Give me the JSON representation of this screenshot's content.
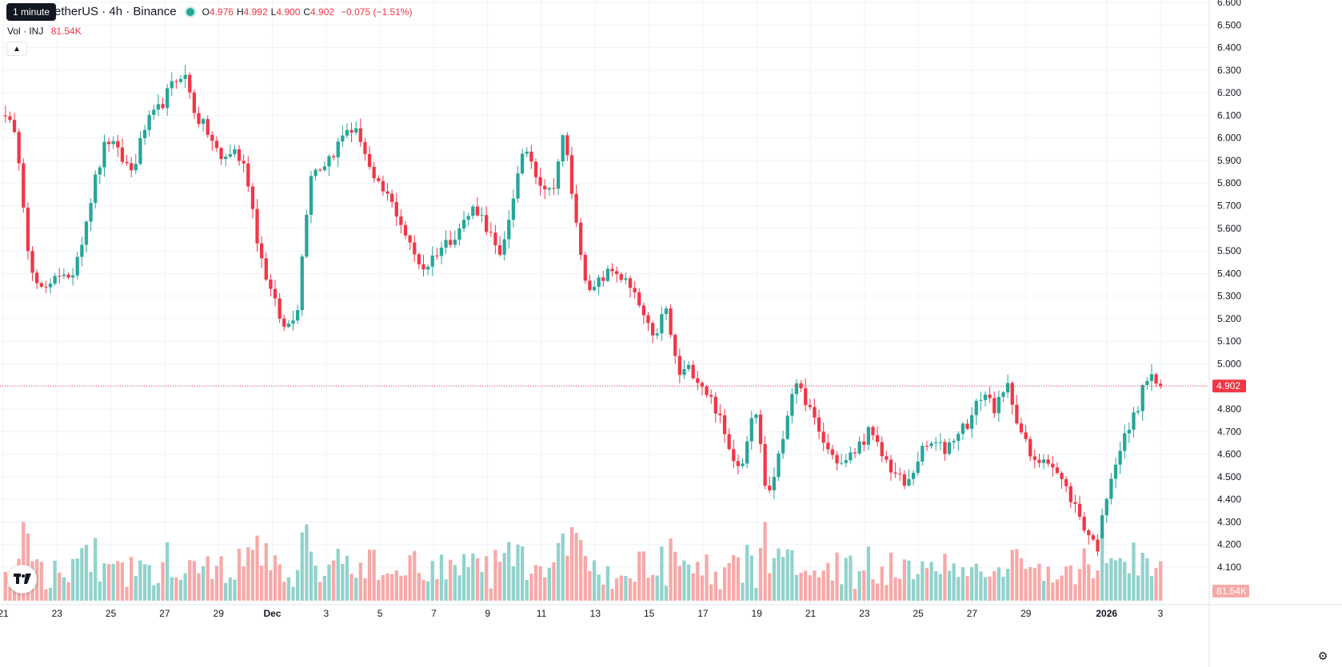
{
  "header": {
    "symbol": "etherUS · 4h · Binance",
    "tooltip": "1 minute",
    "ohlc": {
      "o_label": "O",
      "o_value": "4.976",
      "h_label": "H",
      "h_value": "4.992",
      "l_label": "L",
      "l_value": "4.900",
      "c_label": "C",
      "c_value": "4.902",
      "change": "−0.075 (−1.51%)"
    },
    "volume": {
      "name": "Vol · INJ",
      "value": "81.54K"
    }
  },
  "colors": {
    "up": "#26a69a",
    "down": "#f23645",
    "up_volume": "#92d2cc",
    "down_volume": "#f7a9a7",
    "grid": "#f0f3fa",
    "price_line": "#f23645"
  },
  "icons": {
    "logo": "tradingview-logo-icon",
    "settings": "gear-icon",
    "collapse": "chevron-up-icon"
  },
  "chart_data": {
    "type": "candlestick",
    "timeframe": "4h",
    "ylim": [
      4.0,
      6.6
    ],
    "y_ticks": [
      "6.600",
      "6.500",
      "6.400",
      "6.300",
      "6.200",
      "6.100",
      "6.000",
      "5.900",
      "5.800",
      "5.700",
      "5.600",
      "5.500",
      "5.400",
      "5.300",
      "5.200",
      "5.100",
      "5.000",
      "4.900",
      "4.800",
      "4.700",
      "4.600",
      "4.500",
      "4.400",
      "4.300",
      "4.200",
      "4.100"
    ],
    "x_ticks": [
      {
        "label": "21",
        "day": 0
      },
      {
        "label": "23",
        "day": 2
      },
      {
        "label": "25",
        "day": 4
      },
      {
        "label": "27",
        "day": 6
      },
      {
        "label": "29",
        "day": 8
      },
      {
        "label": "Dec",
        "day": 10,
        "bold": true
      },
      {
        "label": "3",
        "day": 12
      },
      {
        "label": "5",
        "day": 14
      },
      {
        "label": "7",
        "day": 16
      },
      {
        "label": "9",
        "day": 18
      },
      {
        "label": "11",
        "day": 20
      },
      {
        "label": "13",
        "day": 22
      },
      {
        "label": "15",
        "day": 24
      },
      {
        "label": "17",
        "day": 26
      },
      {
        "label": "19",
        "day": 28
      },
      {
        "label": "21",
        "day": 30
      },
      {
        "label": "23",
        "day": 32
      },
      {
        "label": "25",
        "day": 34
      },
      {
        "label": "27",
        "day": 36
      },
      {
        "label": "29",
        "day": 38
      },
      {
        "label": "2026",
        "day": 41,
        "bold": true
      },
      {
        "label": "3",
        "day": 43
      }
    ],
    "last_price": 4.902,
    "last_price_label": "4.902",
    "last_volume_label": "81.54K",
    "path": [
      6.12,
      5.95,
      5.4,
      5.3,
      5.42,
      5.35,
      5.55,
      5.8,
      6.0,
      5.92,
      5.85,
      6.05,
      6.12,
      6.22,
      6.3,
      6.1,
      6.02,
      5.9,
      5.95,
      5.85,
      5.5,
      5.3,
      5.15,
      5.25,
      5.85,
      5.88,
      5.95,
      6.05,
      6.0,
      5.8,
      5.75,
      5.65,
      5.5,
      5.42,
      5.5,
      5.55,
      5.62,
      5.7,
      5.6,
      5.45,
      5.75,
      5.96,
      5.82,
      5.75,
      6.02,
      5.6,
      5.3,
      5.38,
      5.42,
      5.35,
      5.25,
      5.1,
      5.25,
      4.95,
      4.98,
      4.9,
      4.8,
      4.62,
      4.55,
      4.85,
      4.4,
      4.6,
      4.9,
      4.85,
      4.7,
      4.6,
      4.55,
      4.62,
      4.7,
      4.6,
      4.52,
      4.45,
      4.6,
      4.65,
      4.62,
      4.7,
      4.75,
      4.88,
      4.8,
      4.9,
      4.7,
      4.55,
      4.6,
      4.5,
      4.4,
      4.28,
      4.18,
      4.5,
      4.65,
      4.78,
      4.95,
      4.902
    ],
    "volume_max": 1.0
  }
}
